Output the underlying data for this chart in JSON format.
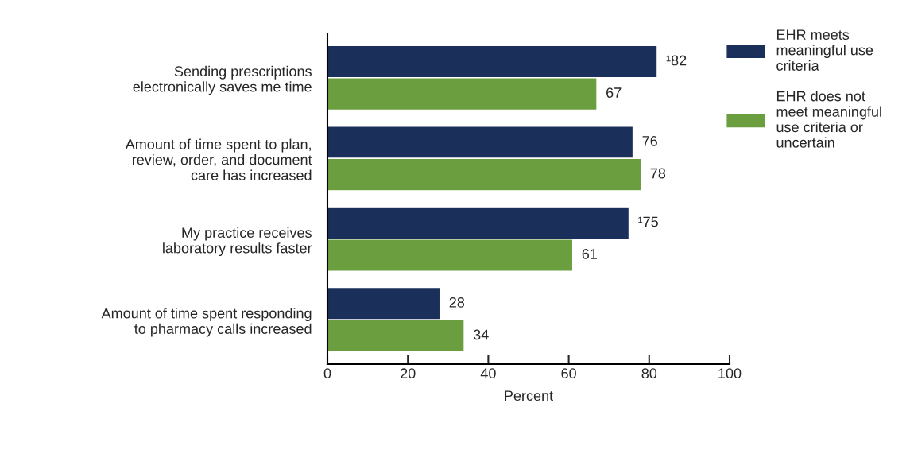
{
  "chart_data": {
    "type": "bar",
    "orientation": "horizontal",
    "xlabel": "Percent",
    "categories": [
      "Sending prescriptions\nelectronically saves me time",
      "Amount of time spent to plan,\nreview, order, and document\ncare has increased",
      "My practice receives\nlaboratory results faster",
      "Amount of time spent responding\nto pharmacy calls increased"
    ],
    "series": [
      {
        "name": "EHR meets\nmeaningful use\ncriteria",
        "color": "#1b2f5b",
        "values": [
          82,
          76,
          75,
          28
        ],
        "value_labels": [
          "¹82",
          "76",
          "¹75",
          "28"
        ]
      },
      {
        "name": "EHR does not\nmeet meaningful\nuse criteria or\nuncertain",
        "color": "#6a9e3f",
        "values": [
          67,
          78,
          61,
          34
        ],
        "value_labels": [
          "67",
          "78",
          "61",
          "34"
        ]
      }
    ],
    "xlim": [
      0,
      100
    ],
    "xticks": [
      0,
      20,
      40,
      60,
      80,
      100
    ],
    "grid": false,
    "legend": "top right"
  }
}
